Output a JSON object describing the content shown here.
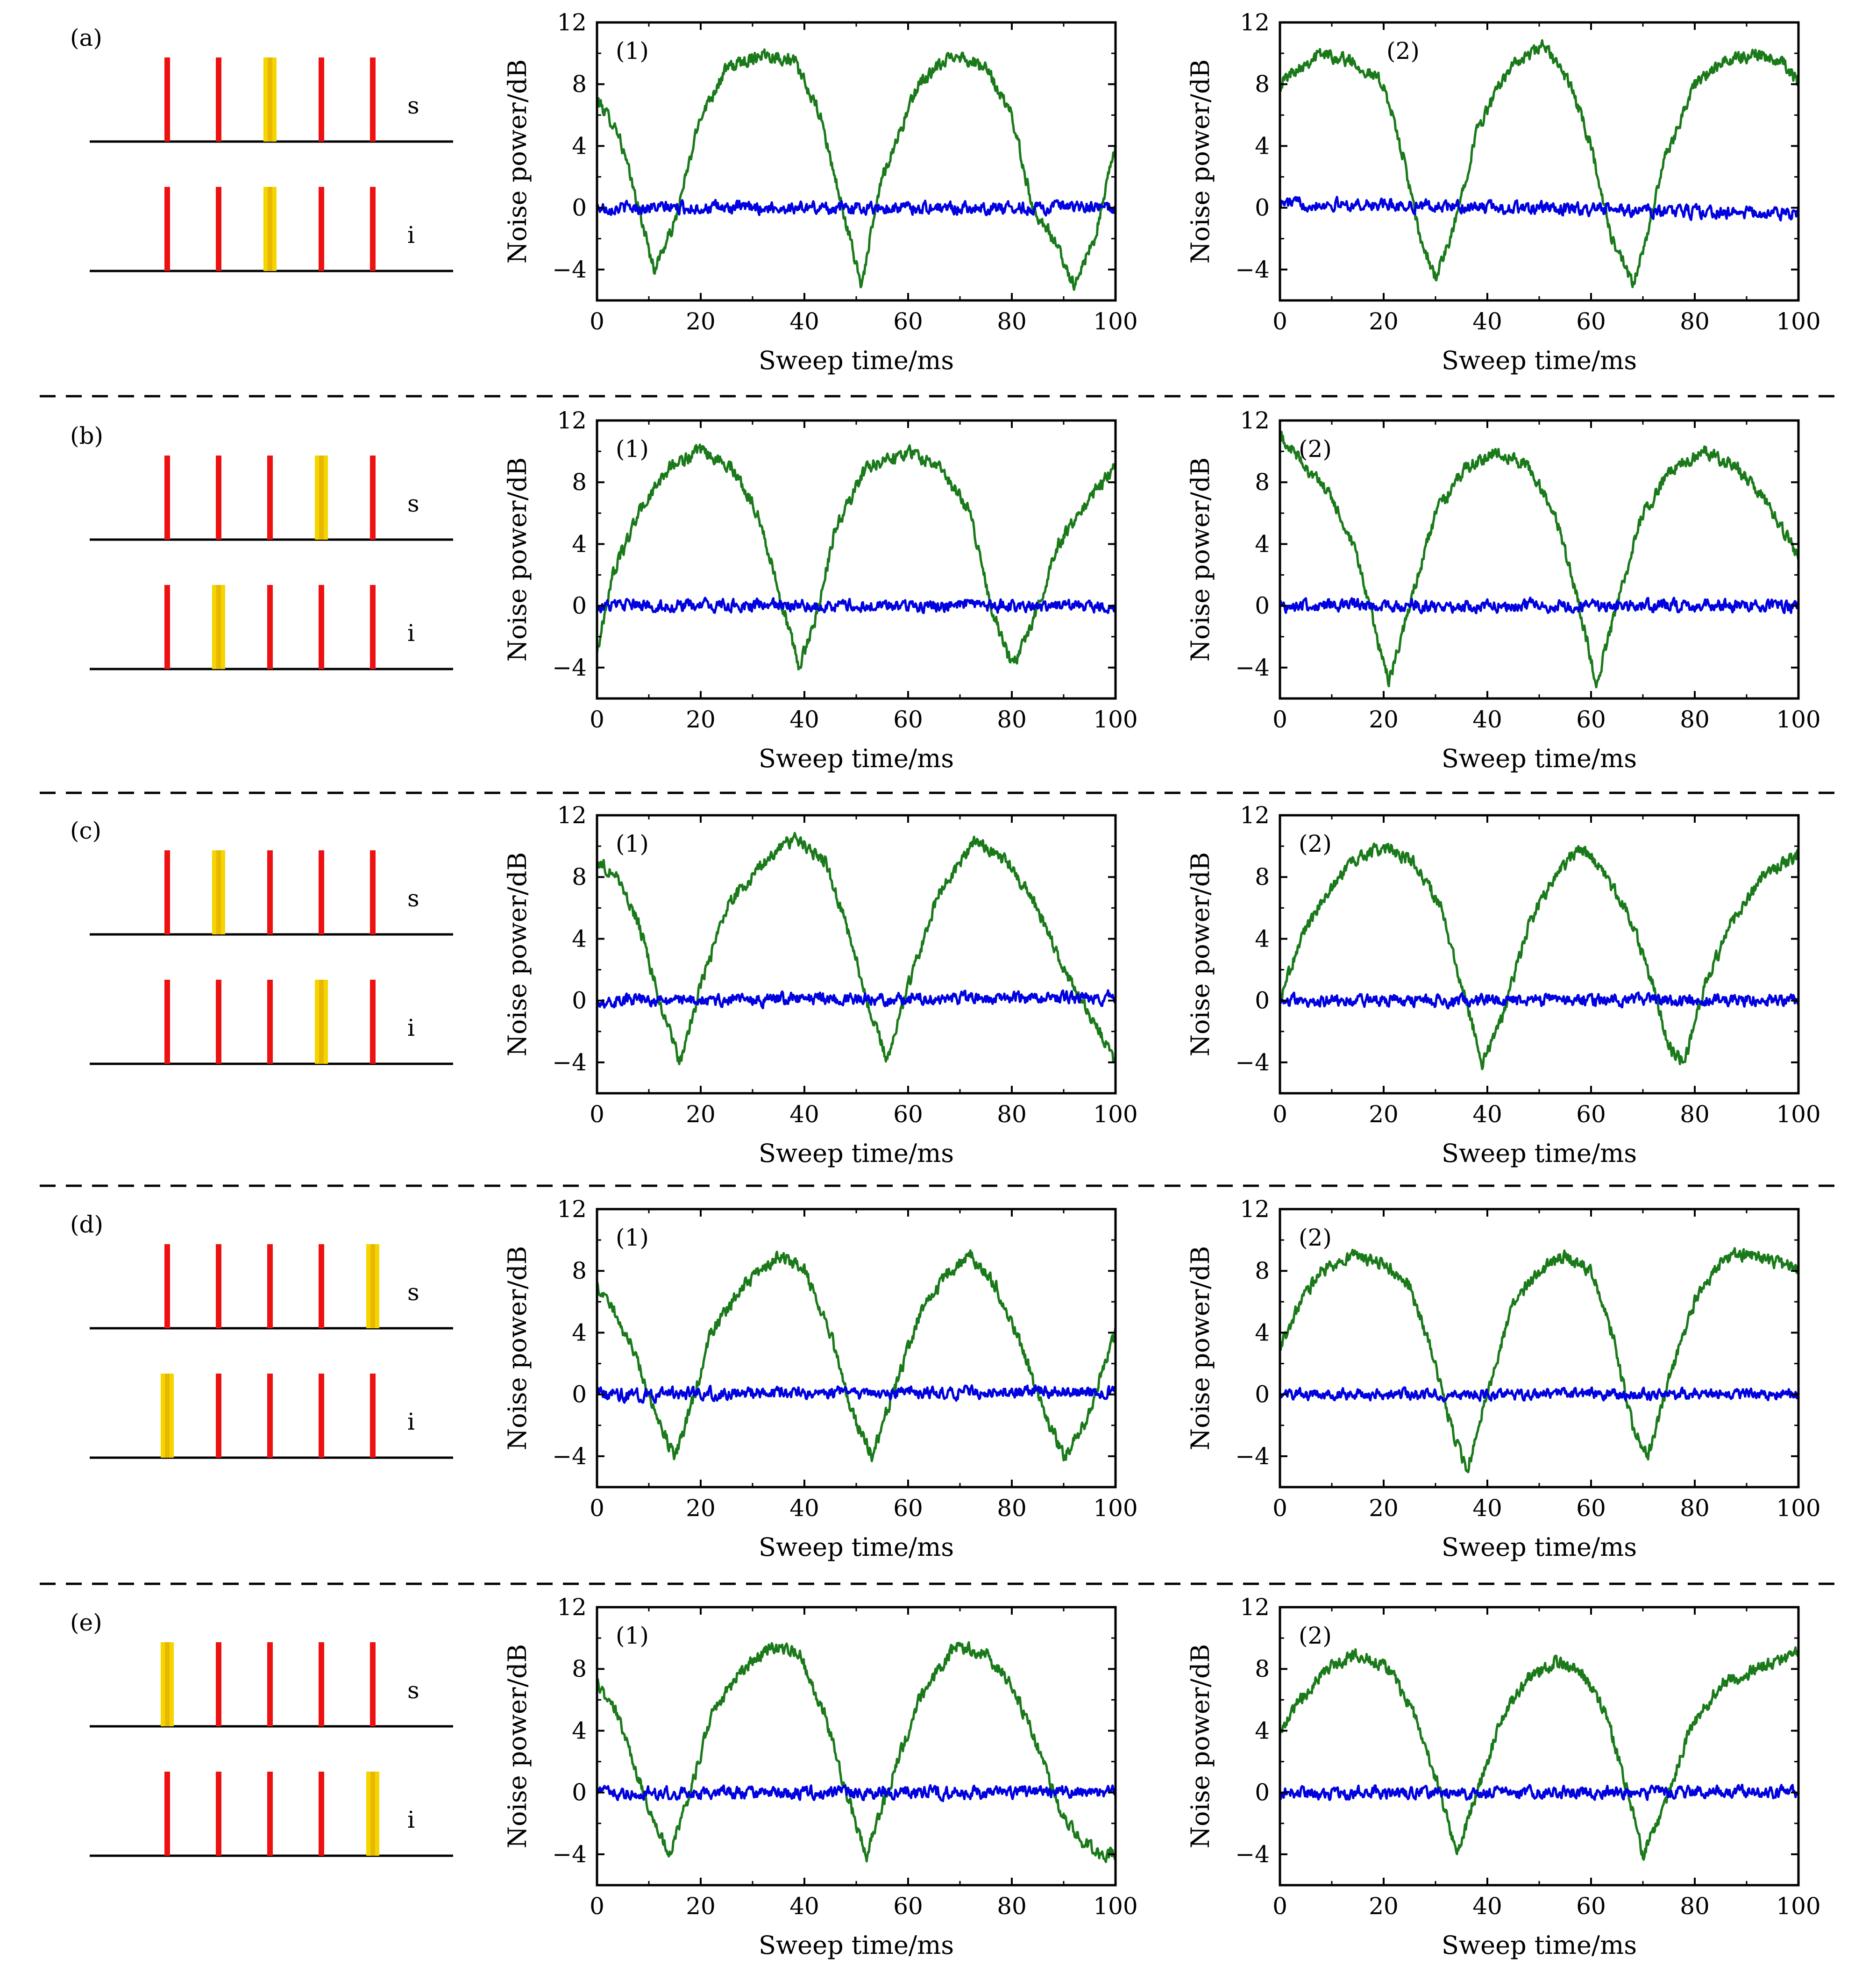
{
  "colors": {
    "noise_trace": "#1a7a1a",
    "shot_noise_trace": "#0000e0",
    "comb_line": "#ee1111",
    "highlight_line": "#f5d400",
    "highlight_core": "#e8b800",
    "axis": "#000000",
    "separator": "#000000"
  },
  "comb_labels": {
    "signal": "s",
    "idler": "i"
  },
  "chart_data": [
    {
      "type": "line",
      "row": "(a)",
      "panel_tag": "(1)",
      "xlabel": "Sweep time/ms",
      "ylabel": "Noise power/dB",
      "xlim": [
        0,
        100
      ],
      "ylim": [
        -6,
        12
      ],
      "xticks": [
        0,
        20,
        40,
        60,
        80,
        100
      ],
      "yticks": [
        -4,
        0,
        4,
        8,
        12
      ],
      "signal_index": 2,
      "idler_index": 2,
      "series": [
        {
          "role": "squeezing",
          "color": "#1a7a1a",
          "x": [
            0,
            4,
            8,
            11,
            15,
            20,
            25,
            32,
            38,
            43,
            48,
            51,
            55,
            62,
            69,
            75,
            80,
            84,
            88,
            92,
            96,
            100
          ],
          "y": [
            7,
            5,
            0,
            -4,
            -1,
            6,
            9,
            10,
            9.5,
            6,
            -1,
            -5,
            2,
            8,
            10,
            9,
            6,
            0,
            -2,
            -5,
            -2,
            4
          ]
        },
        {
          "role": "shot-noise",
          "color": "#0000e0",
          "x": [
            0,
            100
          ],
          "y": [
            0,
            0
          ],
          "noise": 0.4
        }
      ]
    },
    {
      "type": "line",
      "row": "(a)",
      "panel_tag": "(2)",
      "xlabel": "Sweep time/ms",
      "ylabel": "Noise power/dB",
      "xlim": [
        0,
        100
      ],
      "ylim": [
        -6,
        12
      ],
      "xticks": [
        0,
        20,
        40,
        60,
        80,
        100
      ],
      "yticks": [
        -4,
        0,
        4,
        8,
        12
      ],
      "series": [
        {
          "role": "squeezing",
          "color": "#1a7a1a",
          "x": [
            0,
            3,
            8,
            14,
            20,
            24,
            27,
            30,
            33,
            38,
            44,
            51,
            56,
            60,
            64,
            68,
            70,
            74,
            80,
            86,
            92,
            97,
            100
          ],
          "y": [
            8,
            9,
            10,
            9.5,
            8,
            3,
            -2,
            -4.5,
            -2,
            5,
            9,
            10.5,
            8,
            4,
            -2,
            -5,
            -3,
            3,
            8,
            9.5,
            10,
            9.5,
            8
          ]
        },
        {
          "role": "shot-noise",
          "color": "#0000e0",
          "x": [
            0,
            100
          ],
          "y": [
            0.3,
            -0.4
          ],
          "noise": 0.4
        }
      ]
    },
    {
      "type": "line",
      "row": "(b)",
      "panel_tag": "(1)",
      "xlabel": "Sweep time/ms",
      "ylabel": "Noise power/dB",
      "xlim": [
        0,
        100
      ],
      "ylim": [
        -6,
        12
      ],
      "xticks": [
        0,
        20,
        40,
        60,
        80,
        100
      ],
      "yticks": [
        -4,
        0,
        4,
        8,
        12
      ],
      "signal_index": 3,
      "idler_index": 1,
      "series": [
        {
          "role": "squeezing",
          "color": "#1a7a1a",
          "x": [
            0,
            3,
            8,
            14,
            20,
            26,
            31,
            35,
            39,
            42,
            46,
            52,
            60,
            66,
            72,
            76,
            80,
            84,
            89,
            95,
            100
          ],
          "y": [
            -3,
            2,
            6,
            9,
            10,
            9,
            6,
            1,
            -4,
            -1,
            5,
            9,
            10,
            9,
            6,
            0,
            -4,
            -1,
            4,
            7,
            9
          ]
        },
        {
          "role": "shot-noise",
          "color": "#0000e0",
          "x": [
            0,
            100
          ],
          "y": [
            0,
            0
          ],
          "noise": 0.4
        }
      ]
    },
    {
      "type": "line",
      "row": "(b)",
      "panel_tag": "(2)",
      "xlabel": "Sweep time/ms",
      "ylabel": "Noise power/dB",
      "xlim": [
        0,
        100
      ],
      "ylim": [
        -6,
        12
      ],
      "xticks": [
        0,
        20,
        40,
        60,
        80,
        100
      ],
      "yticks": [
        -4,
        0,
        4,
        8,
        12
      ],
      "series": [
        {
          "role": "squeezing",
          "color": "#1a7a1a",
          "x": [
            0,
            5,
            10,
            15,
            18,
            21,
            25,
            30,
            36,
            42,
            48,
            53,
            57,
            61,
            65,
            70,
            76,
            82,
            88,
            93,
            97,
            100
          ],
          "y": [
            11,
            9,
            7,
            3,
            -1,
            -5,
            0,
            6,
            9,
            10,
            9,
            6,
            1,
            -5,
            0,
            6,
            9,
            10,
            9,
            7,
            5,
            3
          ]
        },
        {
          "role": "shot-noise",
          "color": "#0000e0",
          "x": [
            0,
            100
          ],
          "y": [
            0,
            0
          ],
          "noise": 0.4
        }
      ]
    },
    {
      "type": "line",
      "row": "(c)",
      "panel_tag": "(1)",
      "xlabel": "Sweep time/ms",
      "ylabel": "Noise power/dB",
      "xlim": [
        0,
        100
      ],
      "ylim": [
        -6,
        12
      ],
      "xticks": [
        0,
        20,
        40,
        60,
        80,
        100
      ],
      "yticks": [
        -4,
        0,
        4,
        8,
        12
      ],
      "signal_index": 1,
      "idler_index": 3,
      "series": [
        {
          "role": "squeezing",
          "color": "#1a7a1a",
          "x": [
            0,
            4,
            8,
            12,
            16,
            20,
            25,
            32,
            38,
            44,
            48,
            52,
            56,
            60,
            66,
            73,
            79,
            85,
            90,
            95,
            100
          ],
          "y": [
            9,
            8,
            5,
            0,
            -4,
            1,
            6,
            9,
            10.5,
            9,
            5,
            0,
            -4,
            1,
            7,
            10.5,
            9,
            6,
            2,
            -1,
            -4
          ]
        },
        {
          "role": "shot-noise",
          "color": "#0000e0",
          "x": [
            0,
            100
          ],
          "y": [
            0,
            0.2
          ],
          "noise": 0.4
        }
      ]
    },
    {
      "type": "line",
      "row": "(c)",
      "panel_tag": "(2)",
      "xlabel": "Sweep time/ms",
      "ylabel": "Noise power/dB",
      "xlim": [
        0,
        100
      ],
      "ylim": [
        -6,
        12
      ],
      "xticks": [
        0,
        20,
        40,
        60,
        80,
        100
      ],
      "yticks": [
        -4,
        0,
        4,
        8,
        12
      ],
      "series": [
        {
          "role": "squeezing",
          "color": "#1a7a1a",
          "x": [
            0,
            4,
            9,
            14,
            20,
            26,
            31,
            35,
            39,
            43,
            48,
            53,
            58,
            63,
            68,
            72,
            75,
            78,
            82,
            87,
            93,
            100
          ],
          "y": [
            0,
            4,
            7,
            9,
            10,
            9,
            6,
            1,
            -4,
            -1,
            5,
            8,
            10,
            8,
            5,
            1,
            -3,
            -4,
            1,
            5,
            8,
            9.5
          ]
        },
        {
          "role": "shot-noise",
          "color": "#0000e0",
          "x": [
            0,
            100
          ],
          "y": [
            0,
            0
          ],
          "noise": 0.4
        }
      ]
    },
    {
      "type": "line",
      "row": "(d)",
      "panel_tag": "(1)",
      "xlabel": "Sweep time/ms",
      "ylabel": "Noise power/dB",
      "xlim": [
        0,
        100
      ],
      "ylim": [
        -6,
        12
      ],
      "xticks": [
        0,
        20,
        40,
        60,
        80,
        100
      ],
      "yticks": [
        -4,
        0,
        4,
        8,
        12
      ],
      "signal_index": 4,
      "idler_index": 0,
      "series": [
        {
          "role": "squeezing",
          "color": "#1a7a1a",
          "x": [
            0,
            4,
            8,
            12,
            15,
            18,
            22,
            28,
            35,
            40,
            45,
            49,
            53,
            57,
            62,
            68,
            72,
            77,
            82,
            86,
            90,
            94,
            100
          ],
          "y": [
            7,
            5,
            2,
            -2,
            -4,
            -1,
            4,
            7,
            9,
            8,
            4,
            -1,
            -4,
            0,
            5,
            8,
            9,
            7,
            3,
            -1,
            -4,
            -2,
            4
          ]
        },
        {
          "role": "shot-noise",
          "color": "#0000e0",
          "x": [
            0,
            100
          ],
          "y": [
            0,
            0.2
          ],
          "noise": 0.4
        }
      ]
    },
    {
      "type": "line",
      "row": "(d)",
      "panel_tag": "(2)",
      "xlabel": "Sweep time/ms",
      "ylabel": "Noise power/dB",
      "xlim": [
        0,
        100
      ],
      "ylim": [
        -6,
        12
      ],
      "xticks": [
        0,
        20,
        40,
        60,
        80,
        100
      ],
      "yticks": [
        -4,
        0,
        4,
        8,
        12
      ],
      "series": [
        {
          "role": "squeezing",
          "color": "#1a7a1a",
          "x": [
            0,
            4,
            8,
            14,
            20,
            25,
            29,
            33,
            36,
            40,
            45,
            50,
            55,
            60,
            64,
            68,
            71,
            75,
            80,
            86,
            92,
            100
          ],
          "y": [
            3,
            6,
            8,
            9,
            8.5,
            7,
            3,
            -2,
            -5,
            0,
            6,
            8,
            9,
            8,
            4,
            -2,
            -4,
            1,
            6,
            9,
            9,
            8
          ]
        },
        {
          "role": "shot-noise",
          "color": "#0000e0",
          "x": [
            0,
            100
          ],
          "y": [
            0,
            0
          ],
          "noise": 0.35
        }
      ]
    },
    {
      "type": "line",
      "row": "(e)",
      "panel_tag": "(1)",
      "xlabel": "Sweep time/ms",
      "ylabel": "Noise power/dB",
      "xlim": [
        0,
        100
      ],
      "ylim": [
        -6,
        12
      ],
      "xticks": [
        0,
        20,
        40,
        60,
        80,
        100
      ],
      "yticks": [
        -4,
        0,
        4,
        8,
        12
      ],
      "signal_index": 0,
      "idler_index": 4,
      "series": [
        {
          "role": "squeezing",
          "color": "#1a7a1a",
          "x": [
            0,
            4,
            8,
            11,
            14,
            18,
            22,
            28,
            34,
            39,
            44,
            48,
            52,
            56,
            62,
            69,
            75,
            80,
            85,
            89,
            93,
            97,
            100
          ],
          "y": [
            7,
            5,
            1,
            -2,
            -4,
            0,
            5,
            8,
            9.5,
            9,
            5,
            0,
            -4,
            0,
            6,
            9.5,
            9,
            7,
            3,
            -1,
            -3,
            -4,
            -4
          ]
        },
        {
          "role": "shot-noise",
          "color": "#0000e0",
          "x": [
            0,
            100
          ],
          "y": [
            0,
            0
          ],
          "noise": 0.4
        }
      ]
    },
    {
      "type": "line",
      "row": "(e)",
      "panel_tag": "(2)",
      "xlabel": "Sweep time/ms",
      "ylabel": "Noise power/dB",
      "xlim": [
        0,
        100
      ],
      "ylim": [
        -6,
        12
      ],
      "xticks": [
        0,
        20,
        40,
        60,
        80,
        100
      ],
      "yticks": [
        -4,
        0,
        4,
        8,
        12
      ],
      "series": [
        {
          "role": "squeezing",
          "color": "#1a7a1a",
          "x": [
            0,
            4,
            9,
            15,
            21,
            26,
            30,
            34,
            38,
            43,
            48,
            53,
            58,
            63,
            67,
            70,
            74,
            79,
            85,
            92,
            100
          ],
          "y": [
            4,
            6,
            8,
            9,
            8,
            5,
            1,
            -4,
            0,
            5,
            7.5,
            8.5,
            8,
            5,
            0,
            -4,
            -1,
            4,
            7,
            8,
            9
          ]
        },
        {
          "role": "shot-noise",
          "color": "#0000e0",
          "x": [
            0,
            100
          ],
          "y": [
            0,
            0
          ],
          "noise": 0.4
        }
      ]
    }
  ]
}
